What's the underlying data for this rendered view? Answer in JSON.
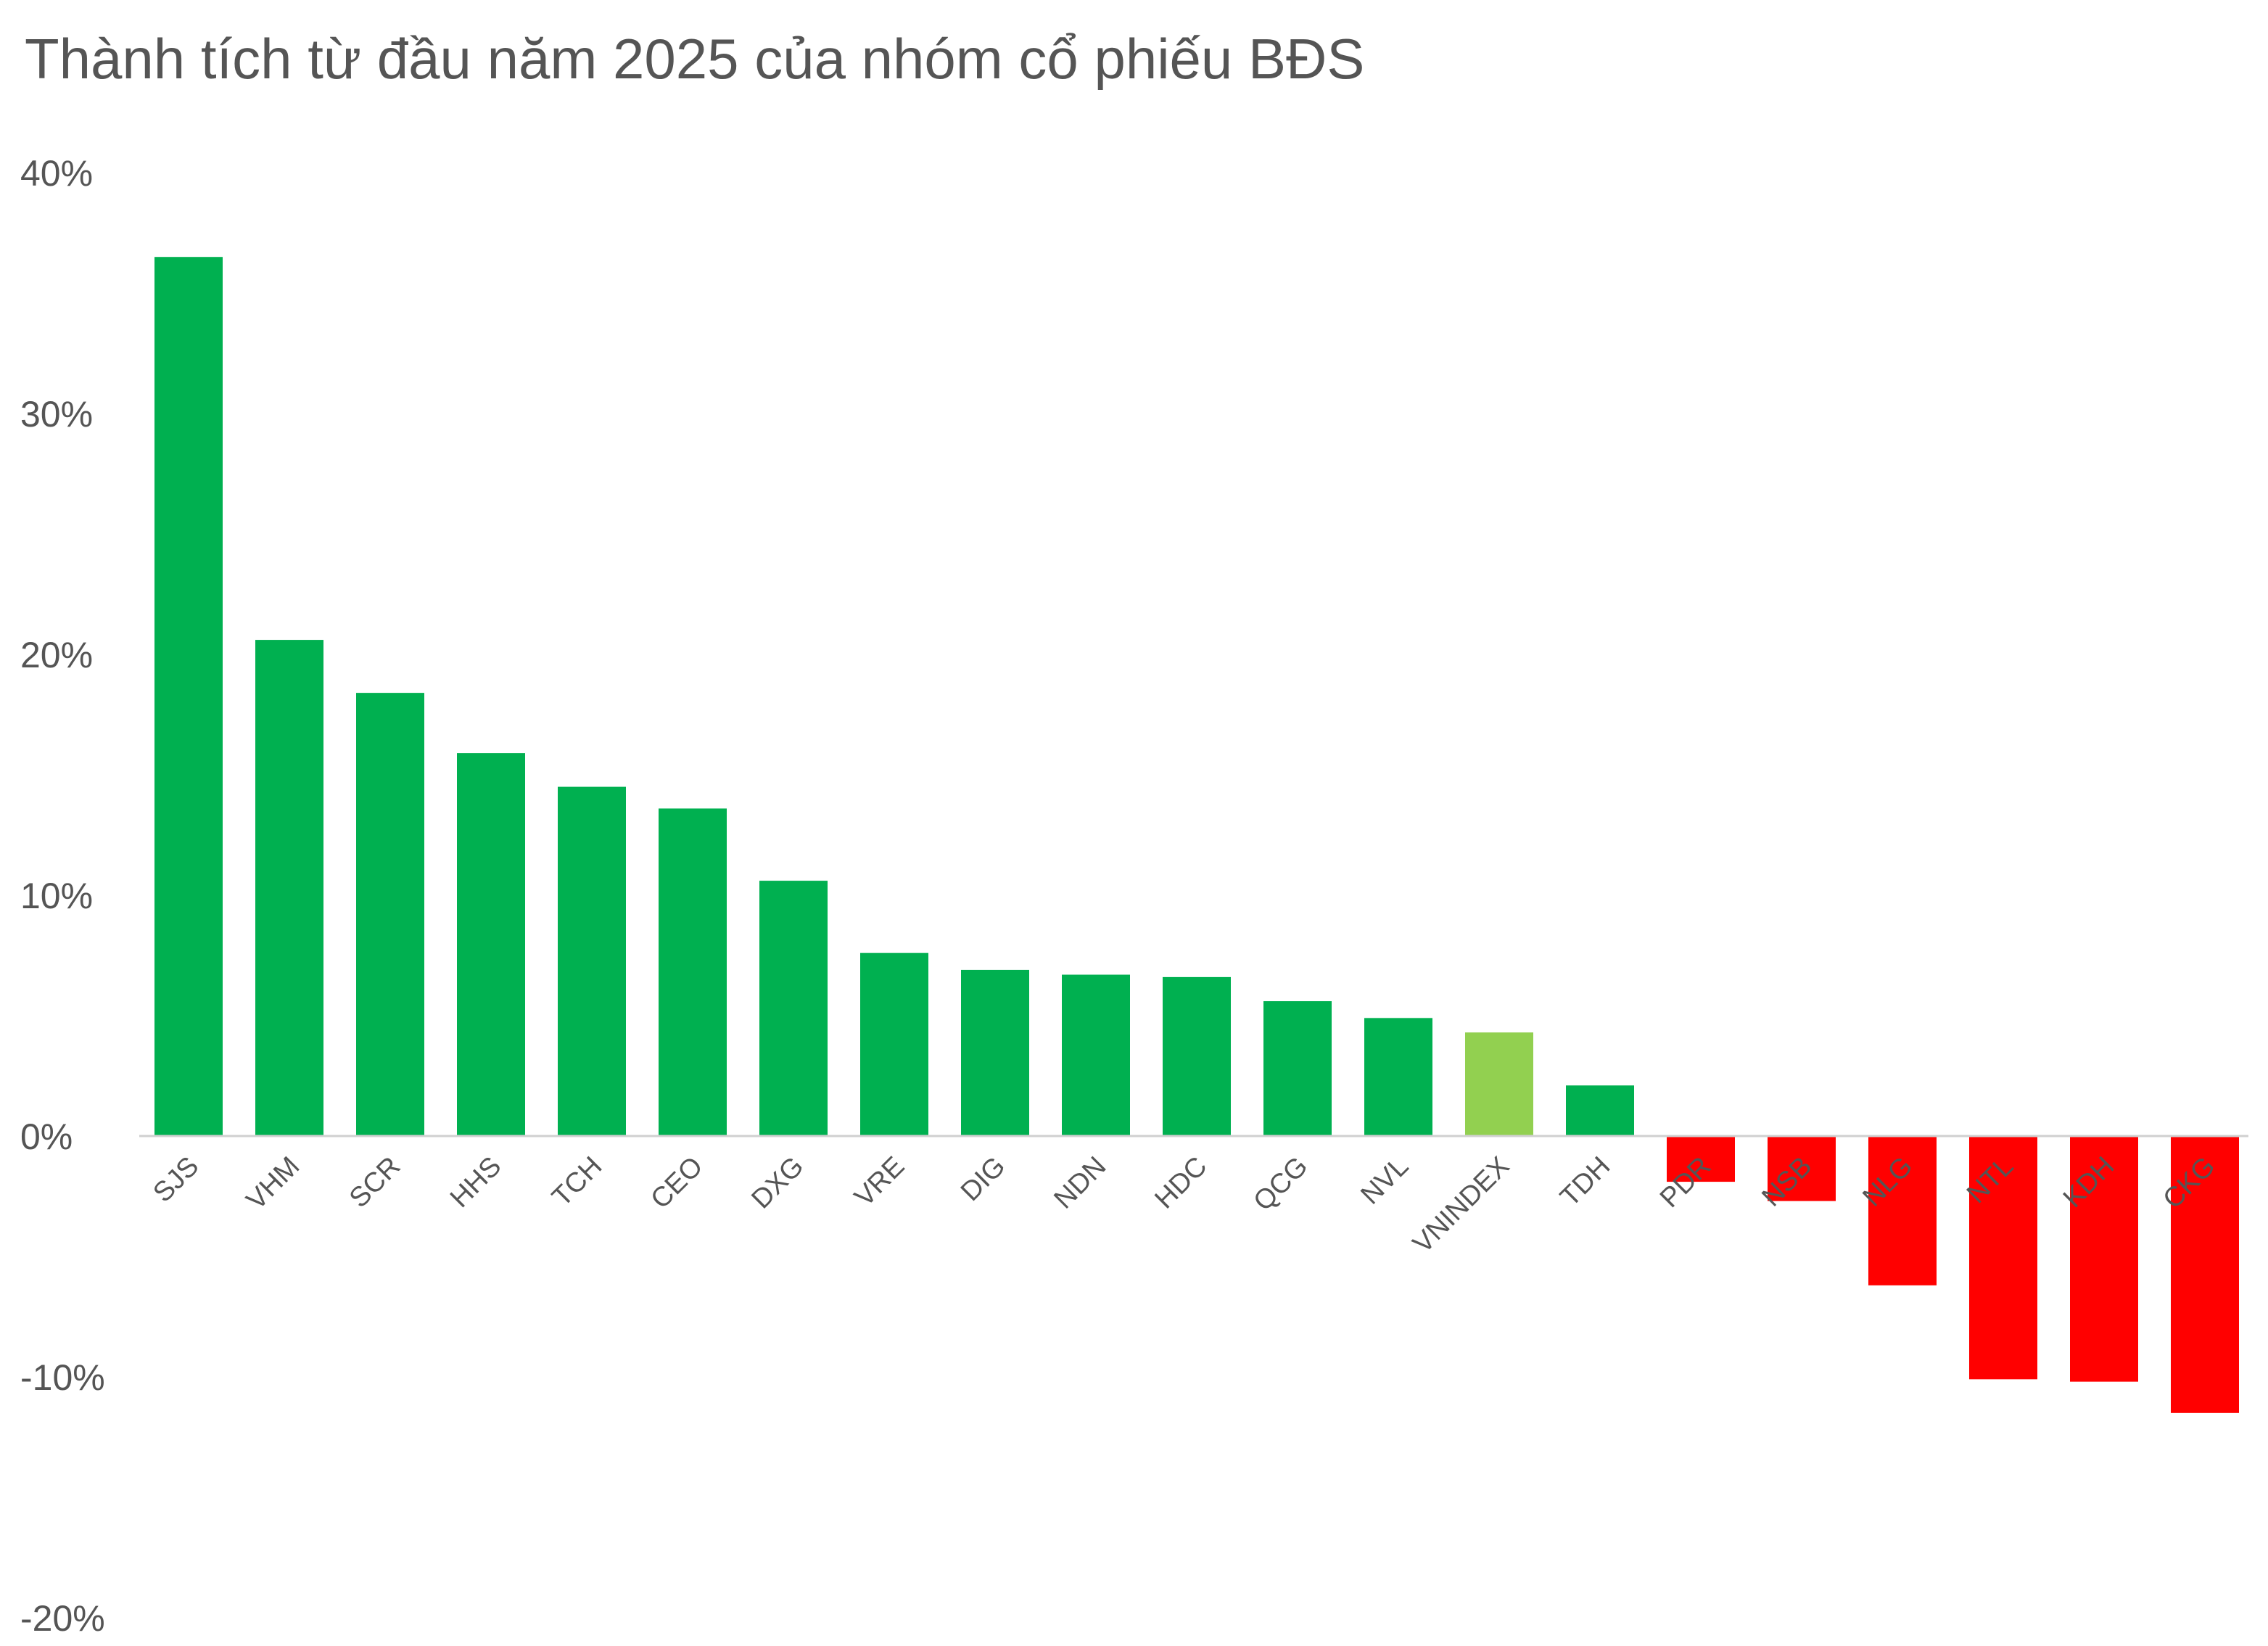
{
  "chart_data": {
    "type": "bar",
    "title": "Thành tích từ đầu năm 2025 của nhóm cổ phiếu BĐS",
    "xlabel": "",
    "ylabel": "",
    "ylim": [
      -20,
      40
    ],
    "yticks": [
      40,
      30,
      20,
      10,
      0,
      -10,
      -20
    ],
    "ytick_labels": [
      "40%",
      "30%",
      "20%",
      "10%",
      "0%",
      "-10%",
      "-20%"
    ],
    "grid": false,
    "legend": "none",
    "categories": [
      "SJS",
      "VHM",
      "SCR",
      "HHS",
      "TCH",
      "CEO",
      "DXG",
      "VRE",
      "DIG",
      "NDN",
      "HDC",
      "QCG",
      "NVL",
      "VNINDEX",
      "TDH",
      "PDR",
      "NSB",
      "NLG",
      "NTL",
      "KDH",
      "CKG"
    ],
    "values": [
      36.5,
      20.6,
      18.4,
      15.9,
      14.5,
      13.6,
      10.6,
      7.6,
      6.9,
      6.7,
      6.6,
      5.6,
      4.9,
      4.3,
      2.1,
      -1.9,
      -2.7,
      -6.2,
      -10.1,
      -10.2,
      -11.5
    ],
    "colors": {
      "positive": "#00b050",
      "benchmark": "#92d050",
      "negative": "#ff0000",
      "axis": "#d0d0d0",
      "text": "#555555"
    },
    "benchmark_category": "VNINDEX"
  }
}
